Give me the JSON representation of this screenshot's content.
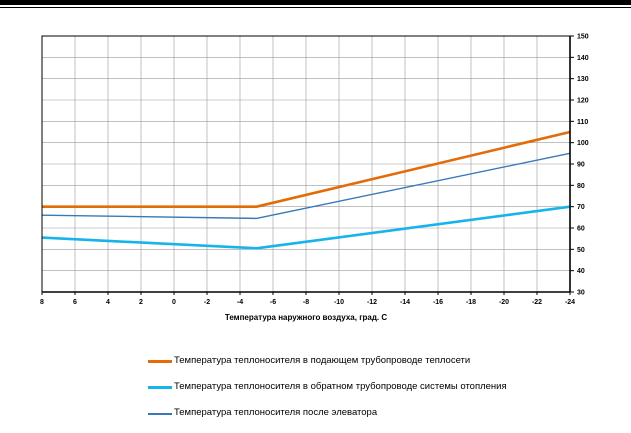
{
  "chart_data": {
    "type": "line",
    "xlabel": "Температура наружного воздуха,  град. С",
    "ylabel": "",
    "xlim": [
      8,
      -24
    ],
    "ylim": [
      30,
      150
    ],
    "x_ticks": [
      8,
      6,
      4,
      2,
      0,
      -2,
      -4,
      -6,
      -8,
      -10,
      -12,
      -14,
      -16,
      -18,
      -20,
      -22,
      -24
    ],
    "y_ticks": [
      30,
      40,
      50,
      60,
      70,
      80,
      90,
      100,
      110,
      120,
      130,
      140,
      150
    ],
    "y_axis_side": "right",
    "grid": true,
    "legend_position": "bottom",
    "series": [
      {
        "name": "Температура теплоносителя в подающем трубопроводе теплосети",
        "color": "#E36C09",
        "x": [
          8,
          -5,
          -24
        ],
        "values": [
          70,
          70,
          105
        ]
      },
      {
        "name": "Температура теплоносителя в обратном трубопроводе системы отопления",
        "color": "#16B4EA",
        "x": [
          8,
          -5,
          -24
        ],
        "values": [
          55.5,
          50.5,
          70
        ]
      },
      {
        "name": "Температура теплоносителя после элеватора",
        "color": "#3A79B8",
        "x": [
          8,
          -5,
          -24
        ],
        "values": [
          66,
          64.5,
          95
        ]
      }
    ]
  }
}
